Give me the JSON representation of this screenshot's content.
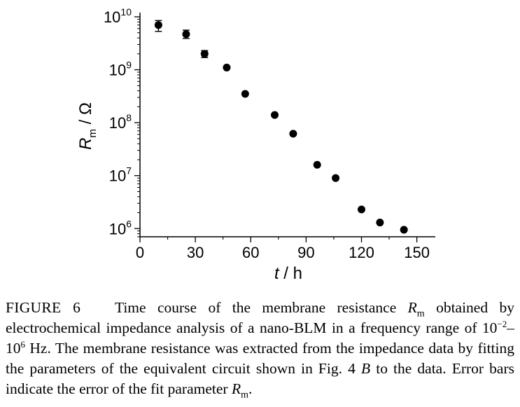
{
  "chart_data": {
    "type": "scatter",
    "xlabel": {
      "var": "t",
      "sep": " / ",
      "unit": "h"
    },
    "ylabel": {
      "var": "R",
      "sub": "m",
      "sep": " / ",
      "unit": "Ω"
    },
    "xlim": [
      0,
      160
    ],
    "xticks": [
      0,
      30,
      60,
      90,
      120,
      150
    ],
    "yscale": "log",
    "ylim": [
      700000,
      12000000000
    ],
    "yticks": [
      {
        "value": 1000000,
        "base": "10",
        "exp": "6"
      },
      {
        "value": 10000000,
        "base": "10",
        "exp": "7"
      },
      {
        "value": 100000000,
        "base": "10",
        "exp": "8"
      },
      {
        "value": 1000000000,
        "base": "10",
        "exp": "9"
      },
      {
        "value": 10000000000,
        "base": "10",
        "exp": "10"
      }
    ],
    "series": [
      {
        "marker": "filled-circle",
        "color": "#000000",
        "points": [
          {
            "x": 10,
            "y": 7000000000,
            "err": [
              5300000000,
              8500000000
            ]
          },
          {
            "x": 25,
            "y": 4700000000,
            "err": [
              3900000000,
              5600000000
            ]
          },
          {
            "x": 35,
            "y": 2000000000,
            "err": [
              1700000000,
              2300000000
            ]
          },
          {
            "x": 47,
            "y": 1100000000
          },
          {
            "x": 57,
            "y": 350000000
          },
          {
            "x": 73,
            "y": 140000000
          },
          {
            "x": 83,
            "y": 62000000
          },
          {
            "x": 96,
            "y": 16000000
          },
          {
            "x": 106,
            "y": 9000000
          },
          {
            "x": 120,
            "y": 2300000
          },
          {
            "x": 130,
            "y": 1300000
          },
          {
            "x": 143,
            "y": 950000
          }
        ]
      }
    ]
  },
  "caption": {
    "label": "FIGURE 6",
    "t1": "Time course of the membrane resistance ",
    "r": "R",
    "rsub": "m",
    "t2": " obtained by electrochemical impedance analysis of a nano-BLM in a frequency range of 10",
    "e1": "−2",
    "t3": "–10",
    "e2": "6",
    "t4": " Hz. The membrane resistance was extracted from the impedance data by fitting the parameters of the equivalent circuit shown in Fig. 4 ",
    "fig": "B",
    "t5": " to the data. Error bars indicate the error of the fit parameter ",
    "r2": "R",
    "r2sub": "m",
    "t6": "."
  }
}
